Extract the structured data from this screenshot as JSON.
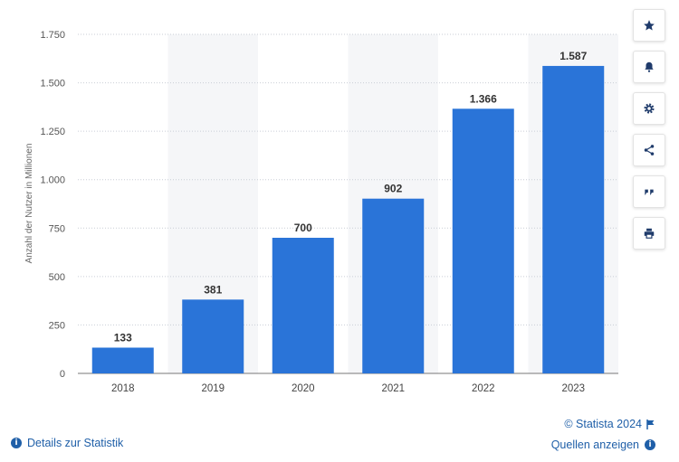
{
  "chart_data": {
    "type": "bar",
    "categories": [
      "2018",
      "2019",
      "2020",
      "2021",
      "2022",
      "2023"
    ],
    "values": [
      133,
      381,
      700,
      902,
      1366,
      1587
    ],
    "value_labels": [
      "133",
      "381",
      "700",
      "902",
      "1.366",
      "1.587"
    ],
    "ylabel": "Anzahl der Nutzer in Millionen",
    "ylim": [
      0,
      1750
    ],
    "yticks": [
      0,
      250,
      500,
      750,
      1000,
      1250,
      1500,
      1750
    ],
    "ytick_labels": [
      "0",
      "250",
      "500",
      "750",
      "1.000",
      "1.250",
      "1.500",
      "1.750"
    ],
    "grid": true,
    "bar_color": "#2a74d8"
  },
  "toolbar": {
    "items": [
      "star-icon",
      "bell-icon",
      "gear-icon",
      "share-icon",
      "quote-icon",
      "print-icon"
    ]
  },
  "footer": {
    "details_link": "Details zur Statistik",
    "copyright": "© Statista 2024",
    "sources_link": "Quellen anzeigen"
  }
}
